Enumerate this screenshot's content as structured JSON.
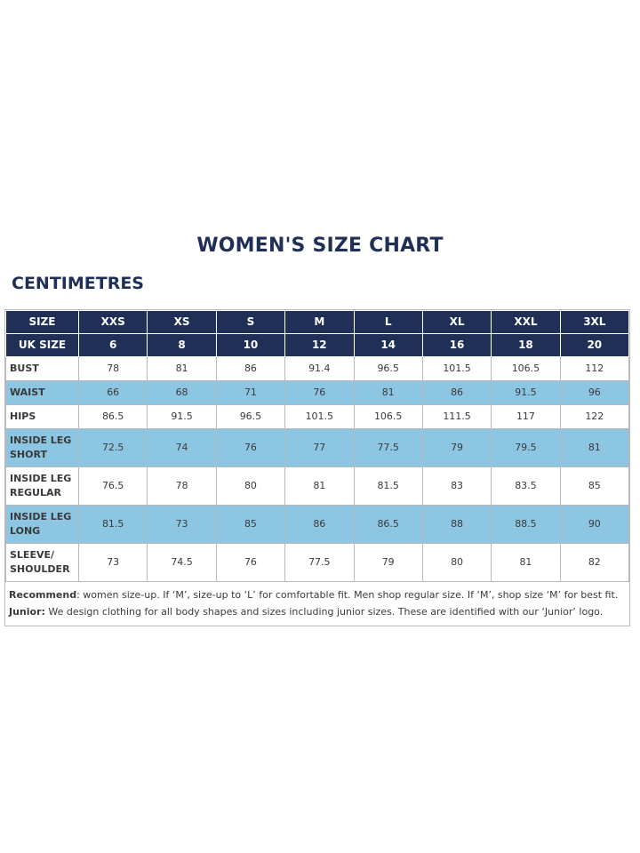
{
  "header": {
    "title": "WOMEN'S SIZE CHART",
    "subtitle": "CENTIMETRES"
  },
  "table": {
    "header_rows": [
      [
        "SIZE",
        "XXS",
        "XS",
        "S",
        "M",
        "L",
        "XL",
        "XXL",
        "3XL"
      ],
      [
        "UK SIZE",
        "6",
        "8",
        "10",
        "12",
        "14",
        "16",
        "18",
        "20"
      ]
    ],
    "rows": [
      [
        "BUST",
        "78",
        "81",
        "86",
        "91.4",
        "96.5",
        "101.5",
        "106.5",
        "112"
      ],
      [
        "WAIST",
        "66",
        "68",
        "71",
        "76",
        "81",
        "86",
        "91.5",
        "96"
      ],
      [
        "HIPS",
        "86.5",
        "91.5",
        "96.5",
        "101.5",
        "106.5",
        "111.5",
        "117",
        "122"
      ],
      [
        "INSIDE LEG SHORT",
        "72.5",
        "74",
        "76",
        "77",
        "77.5",
        "79",
        "79.5",
        "81"
      ],
      [
        "INSIDE LEG REGULAR",
        "76.5",
        "78",
        "80",
        "81",
        "81.5",
        "83",
        "83.5",
        "85"
      ],
      [
        "INSIDE LEG LONG",
        "81.5",
        "73",
        "85",
        "86",
        "86.5",
        "88",
        "88.5",
        "90"
      ],
      [
        "SLEEVE/ SHOULDER",
        "73",
        "74.5",
        "76",
        "77.5",
        "79",
        "80",
        "81",
        "82"
      ]
    ]
  },
  "notes": [
    {
      "label": "Recommend",
      "text": ": women size-up. If ‘M’, size-up to ‘L’ for comfortable fit. Men shop regular size. If ‘M’, shop size ‘M’ for best fit."
    },
    {
      "label": "Junior:",
      "text": " We design clothing for all body shapes and sizes including junior sizes. These are identified with our ‘Junior’ logo."
    }
  ]
}
